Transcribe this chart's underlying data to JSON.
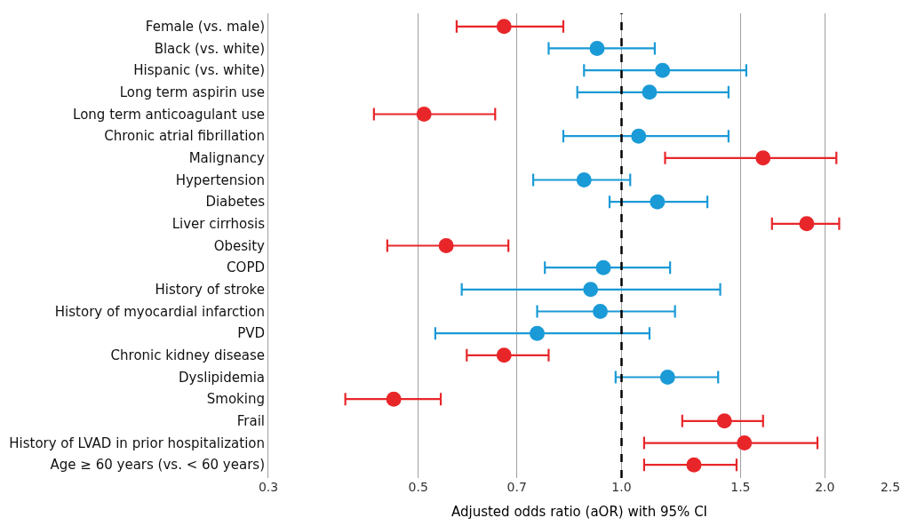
{
  "chart_data": {
    "type": "scatter",
    "orientation": "horizontal",
    "xlabel": "Adjusted odds ratio (aOR) with 95% CI",
    "categories": [
      "Female (vs. male)",
      "Black (vs. white)",
      "Hispanic (vs. white)",
      "Long term aspirin use",
      "Long term anticoagulant use",
      "Chronic atrial fibrillation",
      "Malignancy",
      "Hypertension",
      "Diabetes",
      "Liver cirrhosis",
      "Obesity",
      "COPD",
      "History of stroke",
      "History of myocardial infarction",
      "PVD",
      "Chronic kidney disease",
      "Dyslipidemia",
      "Smoking",
      "Frail",
      "History of LVAD in prior hospitalization",
      "Age ≥ 60 years (vs. < 60 years)"
    ],
    "values": [
      0.67,
      0.92,
      1.15,
      1.1,
      0.51,
      1.06,
      1.62,
      0.88,
      1.13,
      1.88,
      0.55,
      0.94,
      0.9,
      0.93,
      0.75,
      0.67,
      1.17,
      0.46,
      1.42,
      1.52,
      1.28
    ],
    "errors": [
      [
        0.57,
        0.82
      ],
      [
        0.78,
        1.12
      ],
      [
        0.88,
        1.53
      ],
      [
        0.86,
        1.44
      ],
      [
        0.43,
        0.65
      ],
      [
        0.82,
        1.44
      ],
      [
        1.16,
        2.08
      ],
      [
        0.74,
        1.03
      ],
      [
        0.96,
        1.34
      ],
      [
        1.67,
        2.1
      ],
      [
        0.45,
        0.68
      ],
      [
        0.77,
        1.18
      ],
      [
        0.58,
        1.4
      ],
      [
        0.75,
        1.2
      ],
      [
        0.53,
        1.1
      ],
      [
        0.59,
        0.78
      ],
      [
        0.98,
        1.39
      ],
      [
        0.39,
        0.54
      ],
      [
        1.23,
        1.62
      ],
      [
        1.08,
        1.95
      ],
      [
        1.08,
        1.48
      ]
    ],
    "colors": [
      "#e8262a",
      "#1a9ad6",
      "#1a9ad6",
      "#1a9ad6",
      "#e8262a",
      "#1a9ad6",
      "#e8262a",
      "#1a9ad6",
      "#1a9ad6",
      "#e8262a",
      "#e8262a",
      "#1a9ad6",
      "#1a9ad6",
      "#1a9ad6",
      "#1a9ad6",
      "#e8262a",
      "#1a9ad6",
      "#e8262a",
      "#e8262a",
      "#e8262a",
      "#e8262a"
    ],
    "xlim": [
      0.3,
      2.5
    ],
    "xticks": [
      0.3,
      0.5,
      0.7,
      {
        "value": 1.0,
        "label": "1.0"
      },
      1.5,
      {
        "value": 2.0,
        "label": "2.0"
      },
      2.5
    ],
    "log": "x",
    "grid": "x",
    "marker": "circle",
    "ref_lines": [
      {
        "axis": "x",
        "value": 1.0,
        "color": "#000000",
        "line_style": "dashed"
      }
    ]
  }
}
